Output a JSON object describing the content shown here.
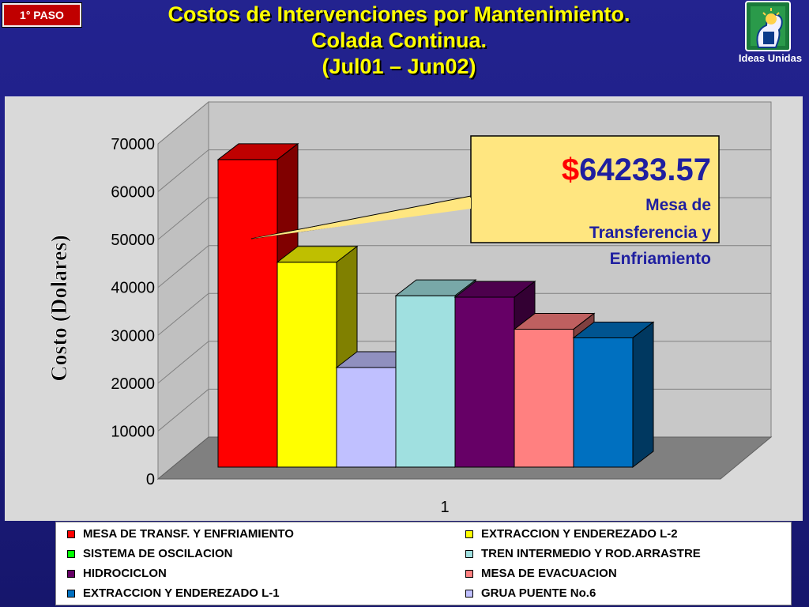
{
  "badge": "1° PASO",
  "title": {
    "line1": "Costos de Intervenciones por Mantenimiento.",
    "line2": "Colada Continua.",
    "line3": "(Jul01 – Jun02)"
  },
  "logo": {
    "label": "Ideas Unidas",
    "icon": "lightbulb-head-icon"
  },
  "callout": {
    "currency": "$",
    "amount": "64233.57",
    "line1": "Mesa de",
    "line2": "Transferencia y",
    "line3": "Enfriamiento"
  },
  "chart_data": {
    "type": "bar",
    "variant": "3d-clustered",
    "categories": [
      "1"
    ],
    "ylabel": "Costo (Dolares)",
    "xlabel": "",
    "ylim": [
      0,
      70000
    ],
    "yticks": [
      "0",
      "10000",
      "20000",
      "30000",
      "40000",
      "50000",
      "60000",
      "70000"
    ],
    "grid": true,
    "legend_position": "bottom",
    "series": [
      {
        "name": "MESA DE TRANSF. Y ENFRIAMIENTO",
        "values": [
          64233.57
        ],
        "color": "#ff0000",
        "visible": true
      },
      {
        "name": "SISTEMA DE OSCILACION",
        "values": [
          0
        ],
        "color": "#00ff00",
        "visible": false
      },
      {
        "name": "HIDROCICLON",
        "values": [
          35500
        ],
        "color": "#660066",
        "visible": true
      },
      {
        "name": "EXTRACCION Y ENDEREZADO L-1",
        "values": [
          27000
        ],
        "color": "#0070c0",
        "visible": true
      },
      {
        "name": "EXTRACCION Y ENDEREZADO L-2",
        "values": [
          42800
        ],
        "color": "#ffff00",
        "visible": true
      },
      {
        "name": "TREN INTERMEDIO Y ROD.ARRASTRE",
        "values": [
          35800
        ],
        "color": "#a0e0e0",
        "visible": true
      },
      {
        "name": "MESA DE EVACUACION",
        "values": [
          28800
        ],
        "color": "#ff8080",
        "visible": true
      },
      {
        "name": "GRUA PUENTE No.6",
        "values": [
          20800
        ],
        "color": "#c0c0ff",
        "visible": true
      }
    ],
    "bar_order": [
      0,
      4,
      7,
      5,
      2,
      6,
      3,
      1
    ],
    "legend_order": [
      0,
      4,
      1,
      5,
      2,
      6,
      3,
      7
    ]
  }
}
